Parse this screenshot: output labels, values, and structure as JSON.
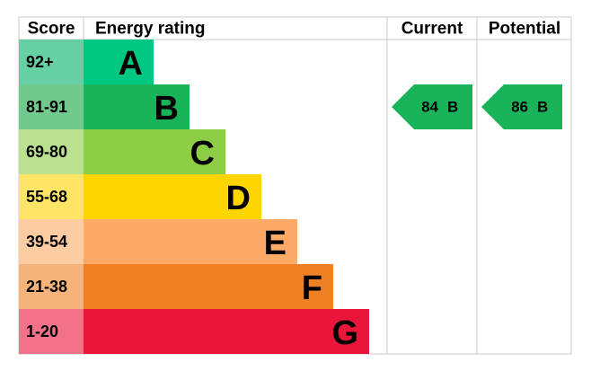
{
  "header": {
    "score": "Score",
    "rating": "Energy rating",
    "current": "Current",
    "potential": "Potential"
  },
  "bands": [
    {
      "score": "92+",
      "letter": "A",
      "color": "#00c781",
      "light": "#66cfa3"
    },
    {
      "score": "81-91",
      "letter": "B",
      "color": "#19b459",
      "light": "#72c98d"
    },
    {
      "score": "69-80",
      "letter": "C",
      "color": "#8dce46",
      "light": "#bbe08f"
    },
    {
      "score": "55-68",
      "letter": "D",
      "color": "#ffd500",
      "light": "#ffe566"
    },
    {
      "score": "39-54",
      "letter": "E",
      "color": "#fcaa65",
      "light": "#fdcca3"
    },
    {
      "score": "21-38",
      "letter": "F",
      "color": "#ef8023",
      "light": "#f5b37b"
    },
    {
      "score": "1-20",
      "letter": "G",
      "color": "#e9153b",
      "light": "#f27389"
    }
  ],
  "current": {
    "value": 84,
    "letter": "B"
  },
  "potential": {
    "value": 86,
    "letter": "B"
  }
}
